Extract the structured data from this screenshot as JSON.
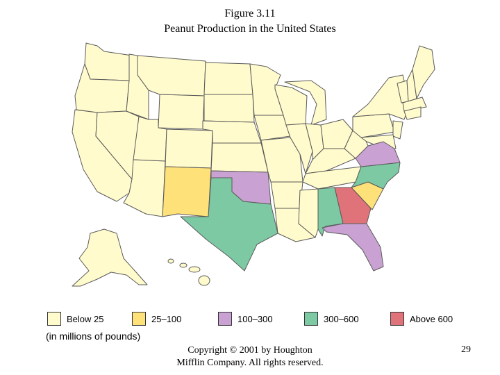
{
  "title": {
    "line1": "Figure 3.11",
    "line2": "Peanut Production in the United States"
  },
  "colors": {
    "below25": "#fffbcc",
    "c25to100": "#ffe17a",
    "c100to300": "#c9a2d3",
    "c300to600": "#7dc9a4",
    "above600": "#e0727a",
    "border": "#5a5a5a"
  },
  "legend": {
    "items": [
      {
        "label": "Below 25",
        "color_key": "below25"
      },
      {
        "label": "25–100",
        "color_key": "c25to100"
      },
      {
        "label": "100–300",
        "color_key": "c100to300"
      },
      {
        "label": "300–600",
        "color_key": "c300to600"
      },
      {
        "label": "Above 600",
        "color_key": "above600"
      }
    ],
    "units": "(in millions of pounds)"
  },
  "state_categories": {
    "georgia": "above600",
    "texas": "c300to600",
    "alabama": "c300to600",
    "north-carolina": "c300to600",
    "oklahoma": "c100to300",
    "florida": "c100to300",
    "virginia": "c100to300",
    "new-mexico": "c25to100",
    "south-carolina": "c25to100"
  },
  "footer": {
    "copyright_line1": "Copyright © 2001 by Houghton",
    "copyright_line2": "Mifflin Company. All rights reserved.",
    "page_number": "29"
  }
}
